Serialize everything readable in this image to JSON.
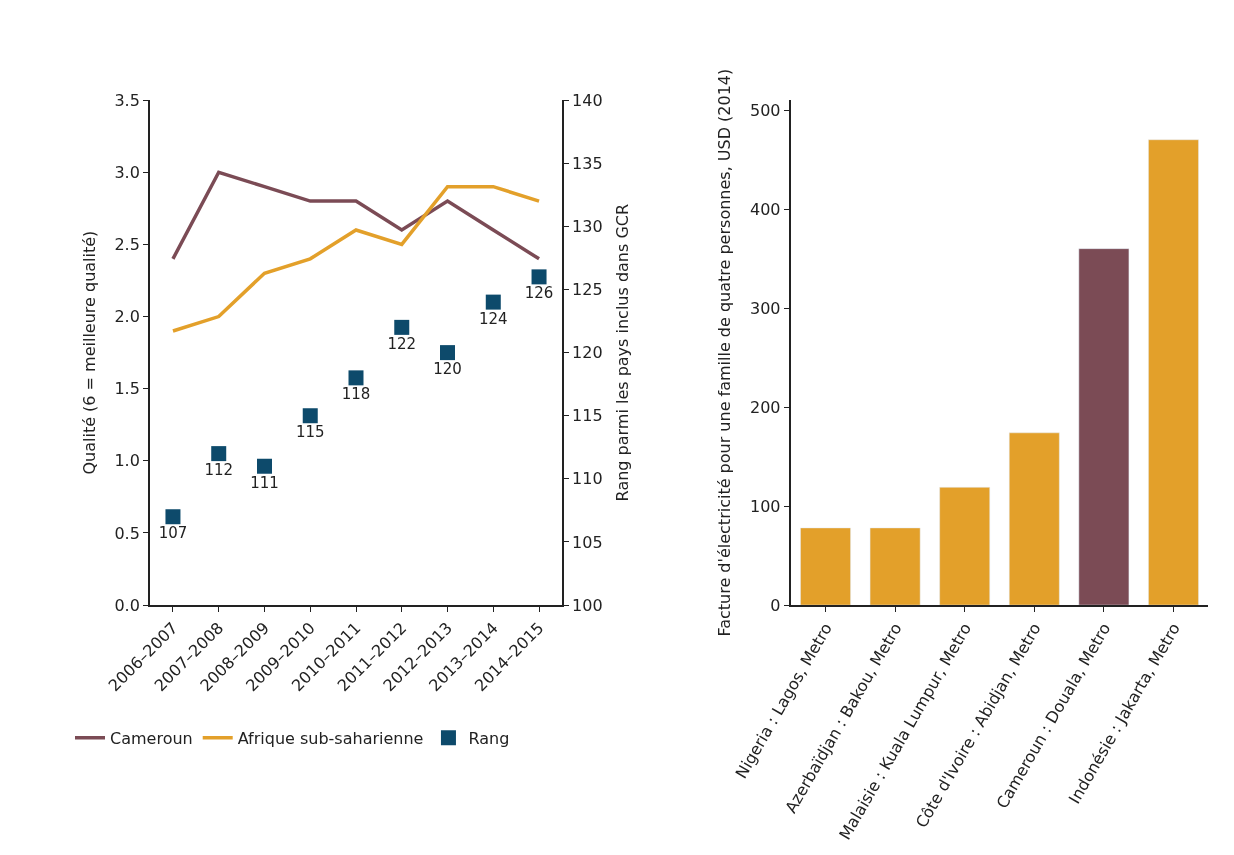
{
  "chart_data": [
    {
      "type": "line",
      "ylabel": "Qualité (6 = meilleure qualité)",
      "y2label": "Rang parmi les pays inclus dans GCR",
      "categories": [
        "2006–2007",
        "2007–2008",
        "2008–2009",
        "2009–2010",
        "2010–2011",
        "2011–2012",
        "2012–2013",
        "2013–2014",
        "2014–2015"
      ],
      "series": [
        {
          "name": "Cameroun",
          "color": "#7b4b55",
          "values": [
            2.4,
            3.0,
            2.9,
            2.8,
            2.8,
            2.6,
            2.8,
            2.6,
            2.4
          ]
        },
        {
          "name": "Afrique sub-saharienne",
          "color": "#e3a02a",
          "values": [
            1.9,
            2.0,
            2.3,
            2.4,
            2.6,
            2.5,
            2.9,
            2.9,
            2.8
          ]
        },
        {
          "name": "Rang",
          "type": "scatter",
          "marker": "square",
          "axis": "y2",
          "color": "#0d4a6b",
          "values": [
            107,
            112,
            111,
            115,
            118,
            122,
            120,
            124,
            126
          ],
          "value_labels": [
            "107",
            "112",
            "111",
            "115",
            "118",
            "122",
            "120",
            "124",
            "126"
          ]
        }
      ],
      "ylim": [
        0,
        3.5
      ],
      "yticks": [
        {
          "value": 0,
          "label": "0.0"
        },
        0.5,
        {
          "value": 1,
          "label": "1.0"
        },
        1.5,
        {
          "value": 2,
          "label": "2.0"
        },
        2.5,
        {
          "value": 3,
          "label": "3.0"
        },
        3.5
      ],
      "y2lim": [
        100,
        140
      ],
      "y2ticks": [
        100,
        105,
        110,
        115,
        120,
        125,
        130,
        135,
        140
      ],
      "legend": "bottom",
      "marker": "none",
      "line_style": "solid"
    },
    {
      "type": "bar",
      "ylabel": "Facture d'électricité pour une famille de quatre personnes, USD (2014)",
      "categories": [
        "Nigeria : Lagos, Metro",
        "Azerbaïdjan : Bakou, Metro",
        "Malaisie : Kuala Lumpur, Metro",
        "Côte d'Ivoire : Abidjan, Metro",
        "Cameroun : Douala, Metro",
        "Indonésie : Jakarta, Metro"
      ],
      "values": [
        78,
        78,
        119,
        174,
        360,
        470
      ],
      "colors": [
        "#e3a02a",
        "#e3a02a",
        "#e3a02a",
        "#e3a02a",
        "#7b4b55",
        "#e3a02a"
      ],
      "ylim": [
        0,
        510
      ],
      "yticks": [
        0,
        100,
        200,
        300,
        400,
        500
      ]
    }
  ]
}
